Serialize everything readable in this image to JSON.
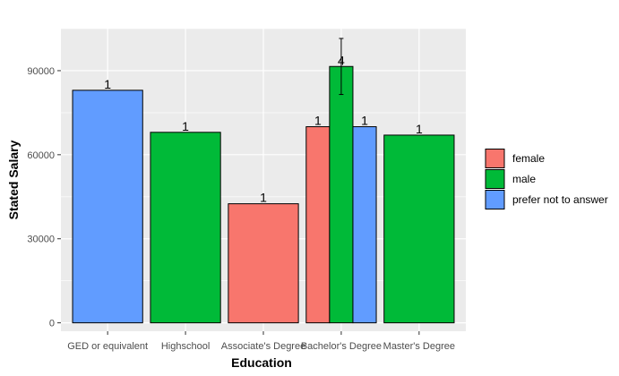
{
  "chart_data": {
    "type": "bar",
    "xlabel": "Education",
    "ylabel": "Stated Salary",
    "categories": [
      "GED or equivalent",
      "Highschool",
      "Associate's Degree",
      "Bachelor's Degree",
      "Master's Degree"
    ],
    "ylim": [
      -3000,
      105000
    ],
    "yticks": [
      0,
      30000,
      60000,
      90000
    ],
    "ytick_labels": [
      "0",
      "30000",
      "60000",
      "90000"
    ],
    "grid": true,
    "legend": {
      "placement": "right",
      "entries": [
        "female",
        "male",
        "prefer not to answer"
      ]
    },
    "series": [
      {
        "name": "female",
        "color": "#F8766D",
        "values": [
          null,
          null,
          42500,
          70000,
          null
        ],
        "counts": [
          null,
          null,
          "1",
          "1",
          null
        ]
      },
      {
        "name": "male",
        "color": "#00BA38",
        "values": [
          null,
          68000,
          null,
          91500,
          67000
        ],
        "counts": [
          null,
          "1",
          null,
          "4",
          "1"
        ]
      },
      {
        "name": "prefer not to answer",
        "color": "#619CFF",
        "values": [
          83000,
          null,
          null,
          70000,
          null
        ],
        "counts": [
          "1",
          null,
          null,
          "1",
          null
        ]
      }
    ],
    "error_bars": [
      {
        "series": "male",
        "category": "Bachelor's Degree",
        "low": 81500,
        "high": 101500
      }
    ]
  }
}
